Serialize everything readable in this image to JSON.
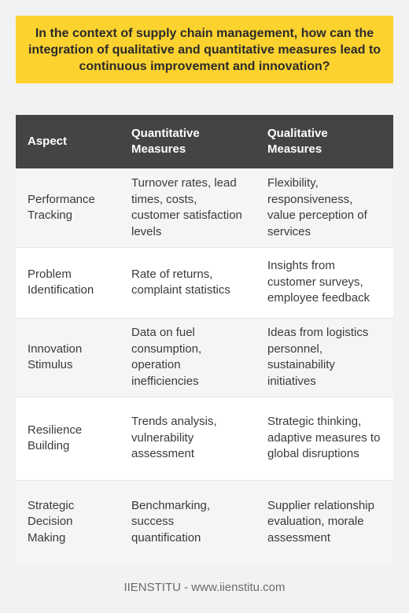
{
  "question": "In the context of supply chain management, how can the integration of qualitative and quantitative measures lead to continuous improvement and innovation?",
  "table": {
    "headers": [
      "Aspect",
      "Quantitative Measures",
      "Qualitative Measures"
    ],
    "rows": [
      {
        "aspect": "Performance Tracking",
        "quantitative": "Turnover rates, lead times, costs, customer satisfaction levels",
        "qualitative": "Flexibility, responsiveness, value perception of services"
      },
      {
        "aspect": "Problem Identification",
        "quantitative": "Rate of returns, complaint statistics",
        "qualitative": "Insights from customer surveys, employee feedback"
      },
      {
        "aspect": "Innovation Stimulus",
        "quantitative": "Data on fuel consumption, operation inefficiencies",
        "qualitative": "Ideas from logistics personnel, sustainability initiatives"
      },
      {
        "aspect": "Resilience Building",
        "quantitative": "Trends analysis, vulnerability assessment",
        "qualitative": "Strategic thinking, adaptive measures to global disruptions"
      },
      {
        "aspect": "Strategic Decision Making",
        "quantitative": "Benchmarking, success quantification",
        "qualitative": "Supplier relationship evaluation, morale assessment"
      }
    ]
  },
  "footer": "IIENSTITU - www.iienstitu.com",
  "colors": {
    "question_background": "#fcd22f",
    "header_background": "#444444",
    "page_background": "#f2f2f2"
  }
}
